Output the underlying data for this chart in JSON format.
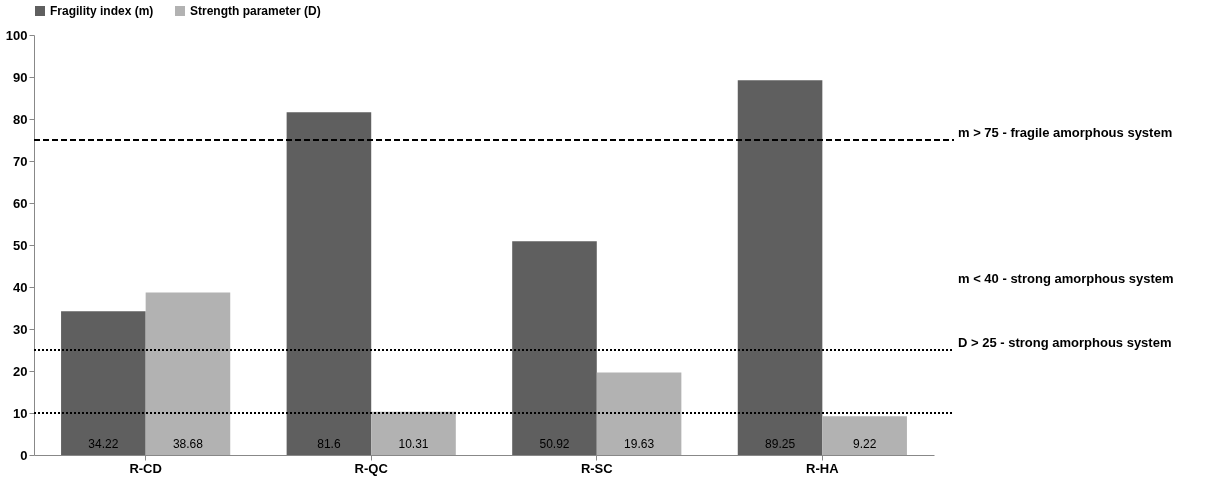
{
  "chart_data": {
    "type": "bar",
    "categories": [
      "R-CD",
      "R-QC",
      "R-SC",
      "R-HA"
    ],
    "series": [
      {
        "name": "Fragility index (m)",
        "color": "#5f5f5f",
        "values": [
          34.22,
          81.6,
          50.92,
          89.25
        ]
      },
      {
        "name": "Strength parameter (D)",
        "color": "#b2b2b2",
        "values": [
          38.68,
          10.31,
          19.63,
          9.22
        ]
      }
    ],
    "ylim": [
      0,
      100
    ],
    "yticks": [
      0,
      10,
      20,
      30,
      40,
      50,
      60,
      70,
      80,
      90,
      100
    ],
    "grid": false,
    "legend": "top",
    "data_labels": true,
    "ref_lines": [
      {
        "axis": "y",
        "value": 75,
        "label": "m > 75 - fragile amorphous system",
        "color": "#000000",
        "line_style": "dashed"
      },
      {
        "axis": "y",
        "value": 25,
        "label": "D > 25 - strong amorphous system",
        "color": "#000000",
        "line_style": "dotted"
      },
      {
        "axis": "y",
        "value": 10,
        "color": "#000000",
        "line_style": "dotted"
      }
    ],
    "annotations": [
      "m < 40 - strong amorphous system"
    ]
  }
}
